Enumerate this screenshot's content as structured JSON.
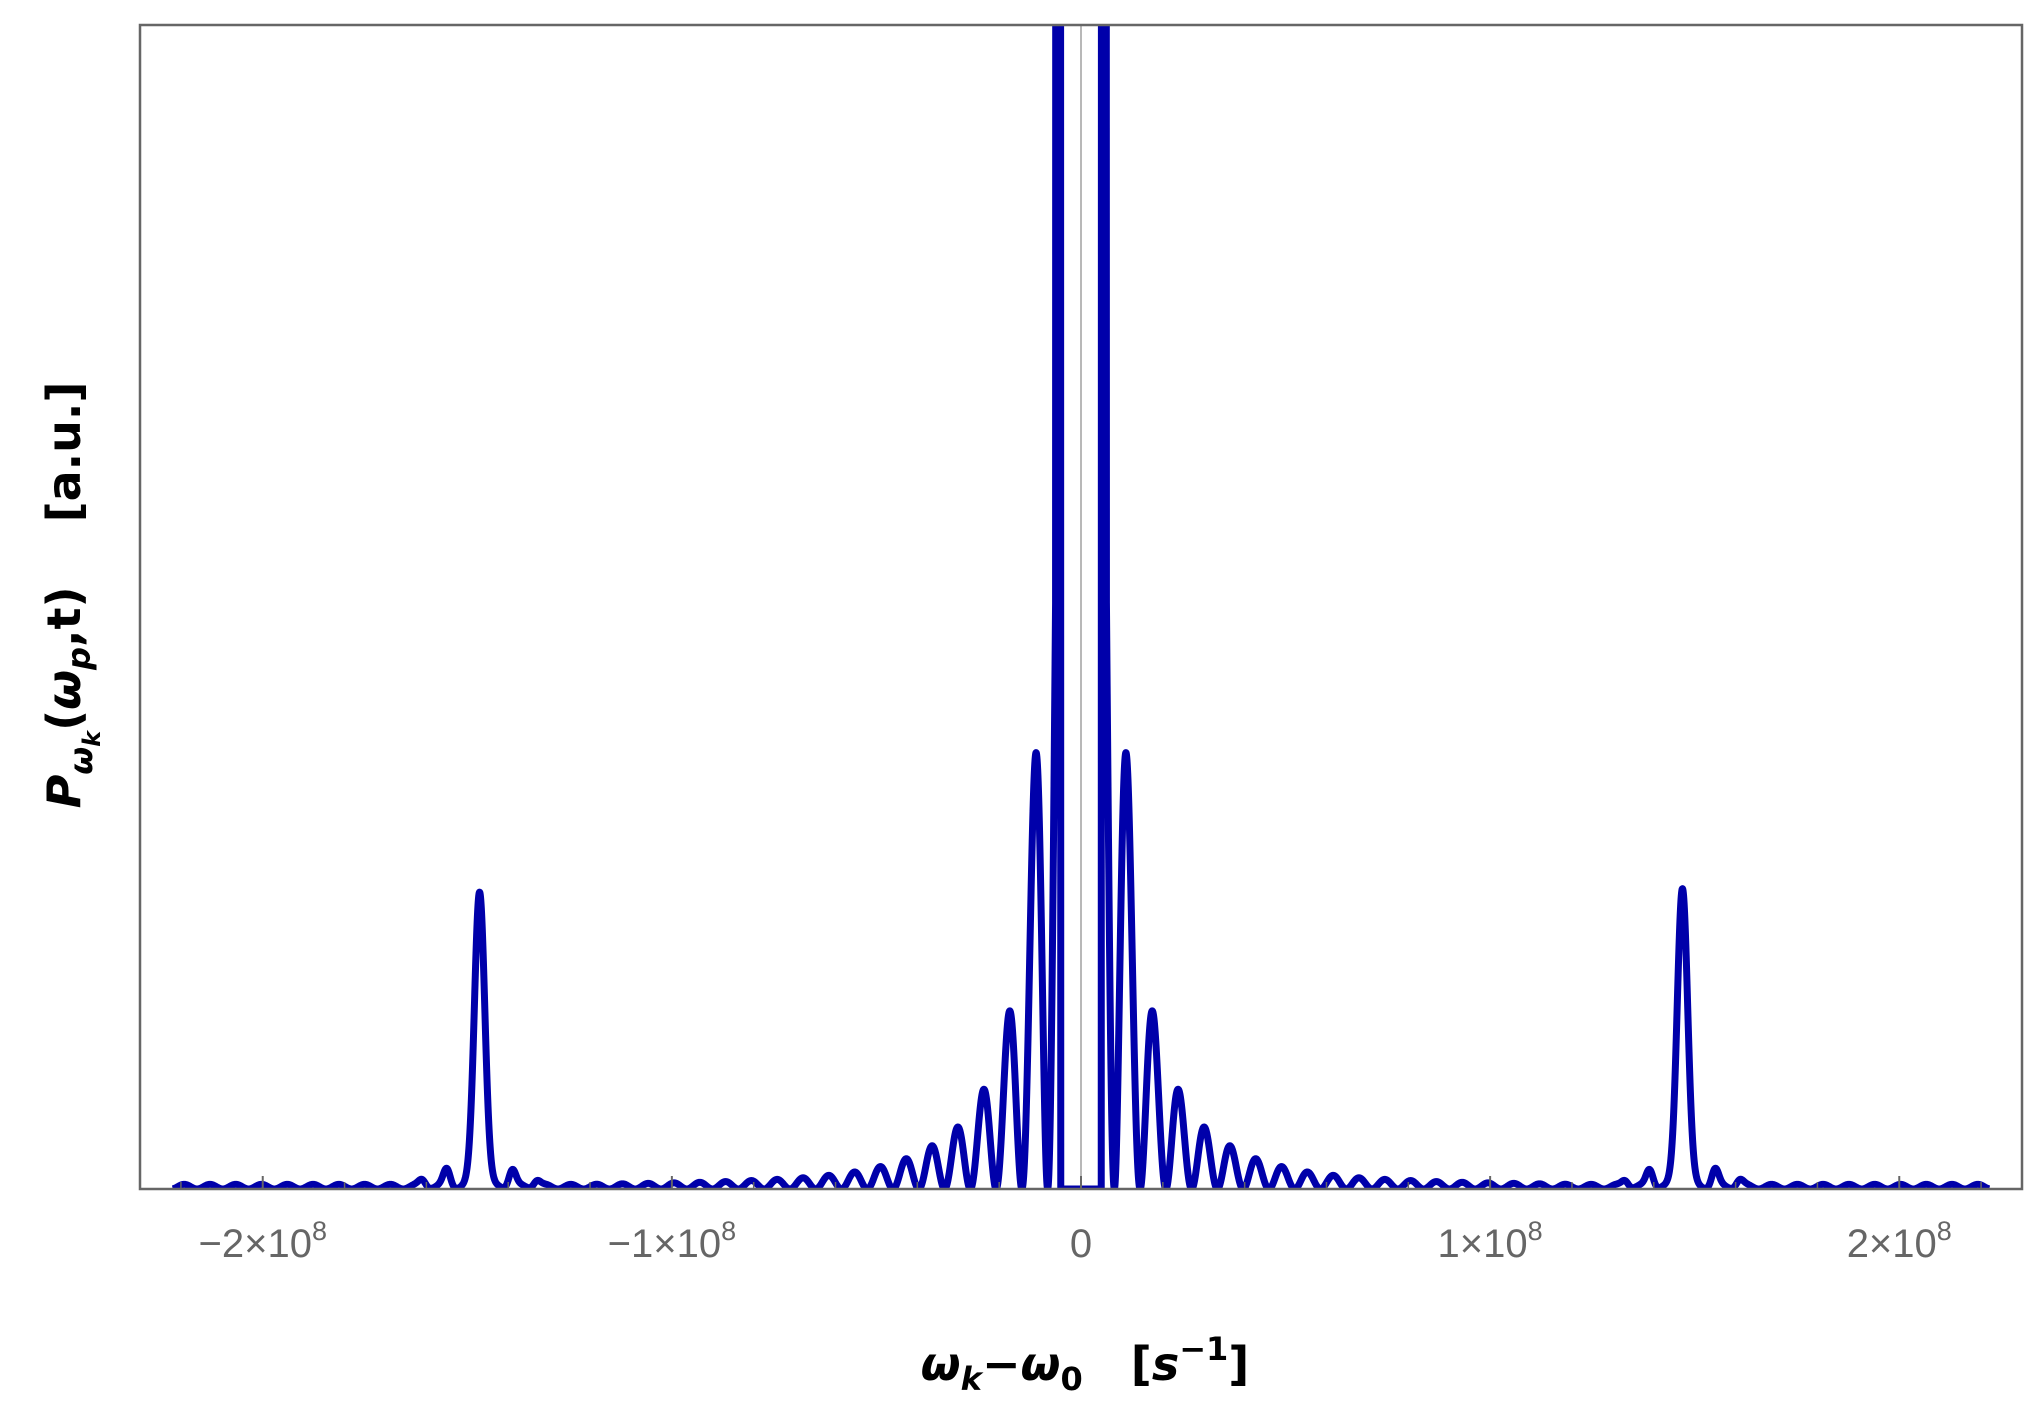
{
  "chart_data": {
    "type": "line",
    "title": "",
    "xlabel": "ωk−ω0   [s−1]",
    "ylabel": "Pωk(ωp,t)    [a.u.]",
    "xlim": [
      -230000000,
      230000000
    ],
    "ylim": [
      0,
      1
    ],
    "grid": false,
    "legend": "none",
    "y_tick_labels": false,
    "x_ticks": [
      {
        "value": -200000000,
        "mantissa": "−2×10",
        "exp": "8"
      },
      {
        "value": -100000000,
        "mantissa": "−1×10",
        "exp": "8"
      },
      {
        "value": 0,
        "mantissa": "0",
        "exp": ""
      },
      {
        "value": 100000000,
        "mantissa": "1×10",
        "exp": "8"
      },
      {
        "value": 200000000,
        "mantissa": "2×10",
        "exp": "8"
      }
    ],
    "x_minor_ticks": [
      -220000000,
      -180000000,
      -160000000,
      -140000000,
      -120000000,
      -80000000,
      -60000000,
      -40000000,
      -20000000,
      20000000,
      40000000,
      60000000,
      80000000,
      120000000,
      140000000,
      160000000,
      180000000,
      220000000
    ],
    "series": [
      {
        "color": "#0000aa",
        "x_range": [
          -222000000,
          222000000
        ],
        "central_gap": 5000000,
        "central_fringe_spacing": 6300000,
        "central_fringe_peaks": [
          {
            "x": 0,
            "y": 1.6
          },
          {
            "x": 9000000,
            "y": 0.53
          },
          {
            "x": 15500000,
            "y": 0.185
          },
          {
            "x": 22000000,
            "y": 0.1
          },
          {
            "x": 28000000,
            "y": 0.06
          },
          {
            "x": 34000000,
            "y": 0.043
          },
          {
            "x": 40000000,
            "y": 0.03
          },
          {
            "x": 46000000,
            "y": 0.022
          },
          {
            "x": 52000000,
            "y": 0.017
          },
          {
            "x": 58000000,
            "y": 0.013
          },
          {
            "x": 64000000,
            "y": 0.011
          },
          {
            "x": 70000000,
            "y": 0.009
          },
          {
            "x": 90000000,
            "y": 0.006
          },
          {
            "x": 120000000,
            "y": 0.004
          }
        ],
        "side_peaks": [
          {
            "x": -147000000,
            "y": 0.255,
            "width": 1800000
          },
          {
            "x": 147000000,
            "y": 0.258,
            "width": 1800000
          }
        ],
        "side_peak_ripples": [
          {
            "x_offset": 8000000,
            "y": 0.015
          },
          {
            "x_offset": 14000000,
            "y": 0.006
          }
        ]
      }
    ]
  }
}
